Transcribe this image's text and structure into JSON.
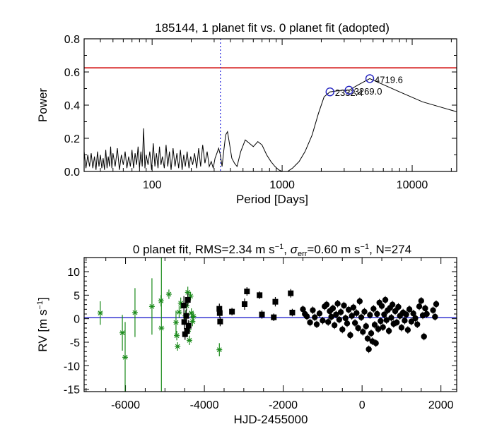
{
  "chart_data": [
    {
      "type": "line",
      "title": "185144,  1 planet fit vs. 0 planet fit (adopted)",
      "xlabel": "Period [Days]",
      "ylabel": "Power",
      "xscale": "log",
      "xlim": [
        30,
        22000
      ],
      "ylim": [
        0,
        0.8
      ],
      "xticks": [
        100,
        1000,
        10000
      ],
      "xtick_labels": [
        "100",
        "1000",
        "10000"
      ],
      "yticks": [
        0.0,
        0.2,
        0.4,
        0.6,
        0.8
      ],
      "ytick_labels": [
        "0.0",
        "0.2",
        "0.4",
        "0.6",
        "0.8"
      ],
      "threshold": 0.625,
      "threshold_color": "#d00000",
      "vline_period": 335,
      "vline_color": "#3333dd",
      "line_color": "#000000",
      "peak_color": "#2020c0",
      "peaks": [
        {
          "period": 2332.4,
          "power": 0.48,
          "label": "2332.4"
        },
        {
          "period": 3269.0,
          "power": 0.49,
          "label": "3269.0"
        },
        {
          "period": 4719.6,
          "power": 0.56,
          "label": "4719.6"
        }
      ],
      "series": [
        {
          "name": "periodogram",
          "x": [
            30,
            31,
            32,
            33,
            34,
            35,
            36,
            37,
            38,
            39,
            40,
            41,
            42,
            43,
            44,
            45,
            46,
            47,
            48,
            49,
            50,
            52,
            54,
            56,
            58,
            60,
            62,
            64,
            66,
            68,
            70,
            72,
            74,
            76,
            78,
            80,
            82,
            84,
            86,
            88,
            90,
            93,
            96,
            99,
            102,
            105,
            108,
            111,
            114,
            117,
            120,
            124,
            128,
            132,
            136,
            140,
            145,
            150,
            155,
            160,
            165,
            170,
            175,
            180,
            186,
            192,
            198,
            205,
            212,
            220,
            228,
            236,
            245,
            255,
            265,
            275,
            285,
            295,
            305,
            315,
            325,
            335,
            345,
            355,
            368,
            380,
            395,
            410,
            430,
            450,
            480,
            520,
            560,
            600,
            650,
            700,
            760,
            820,
            880,
            940,
            1000,
            1100,
            1200,
            1350,
            1500,
            1700,
            1900,
            2100,
            2250,
            2332.4,
            2600,
            2900,
            3269,
            3800,
            4719.6,
            8000,
            12000,
            22000
          ],
          "y": [
            0.12,
            0.02,
            0.1,
            0.03,
            0.11,
            0.02,
            0.09,
            0.01,
            0.12,
            0.03,
            0.1,
            0.02,
            0.08,
            0.01,
            0.13,
            0.02,
            0.09,
            0.03,
            0.15,
            0.02,
            0.11,
            0.03,
            0.14,
            0.01,
            0.1,
            0.04,
            0.12,
            0.02,
            0.09,
            0.03,
            0.13,
            0.02,
            0.11,
            0.04,
            0.15,
            0.02,
            0.12,
            0.03,
            0.26,
            0.02,
            0.1,
            0.04,
            0.12,
            0.01,
            0.17,
            0.03,
            0.11,
            0.02,
            0.15,
            0.04,
            0.09,
            0.02,
            0.16,
            0.03,
            0.12,
            0.01,
            0.14,
            0.03,
            0.11,
            0.02,
            0.13,
            0.01,
            0.1,
            0.03,
            0.12,
            0.02,
            0.09,
            0.04,
            0.11,
            0.02,
            0.14,
            0.03,
            0.16,
            0.05,
            0.12,
            0.03,
            0.06,
            0.02,
            0.08,
            0.11,
            0.14,
            0.1,
            0.03,
            0.12,
            0.22,
            0.24,
            0.16,
            0.08,
            0.05,
            0.03,
            0.12,
            0.19,
            0.17,
            0.15,
            0.18,
            0.16,
            0.1,
            0.06,
            0.03,
            0.01,
            0.0,
            0.0,
            0.02,
            0.06,
            0.12,
            0.22,
            0.35,
            0.45,
            0.47,
            0.48,
            0.485,
            0.49,
            0.49,
            0.52,
            0.56,
            0.48,
            0.42,
            0.36
          ]
        }
      ]
    },
    {
      "type": "scatter",
      "title_parts": {
        "prefix": "0 planet fit, RMS=2.34 m s",
        "exp": "−1",
        "mid": ", ",
        "sigma": "σ",
        "err": "err",
        "val": "=0.60 m s",
        "exp2": "−1",
        "tail": ", N=274"
      },
      "xlabel": "HJD-2455000",
      "ylabel_main": "RV [m s",
      "ylabel_exp": "−1",
      "ylabel_close": "]",
      "xlim": [
        -7050,
        2400
      ],
      "ylim": [
        -15.5,
        13
      ],
      "xticks": [
        -6000,
        -4000,
        -2000,
        0,
        2000
      ],
      "xtick_labels": [
        "-6000",
        "-4000",
        "-2000",
        "0",
        "2000"
      ],
      "yticks": [
        -15,
        -10,
        -5,
        0,
        5,
        10
      ],
      "ytick_labels": [
        "-15",
        "-10",
        "-5",
        "0",
        "5",
        "10"
      ],
      "fit_line": 0.2,
      "fit_color": "#2222cc",
      "group_colors": {
        "green": "#1a8a1a",
        "black": "#000000"
      },
      "green_points": [
        {
          "x": -6640,
          "y": 1.2,
          "err": 2.5
        },
        {
          "x": -6080,
          "y": -3.0,
          "err": 3.8
        },
        {
          "x": -6010,
          "y": -8.2,
          "err": 7.5
        },
        {
          "x": -5760,
          "y": 1.3,
          "err": 5.2
        },
        {
          "x": -5330,
          "y": 2.6,
          "err": 6.0
        },
        {
          "x": -5090,
          "y": -2.0,
          "err": 15.0
        },
        {
          "x": -5100,
          "y": 3.8,
          "err": 1.2
        },
        {
          "x": -4900,
          "y": 5.2,
          "err": 1.0
        },
        {
          "x": -4720,
          "y": -0.8,
          "err": 2.5
        },
        {
          "x": -4700,
          "y": -3.6,
          "err": 1.0
        },
        {
          "x": -4680,
          "y": -5.9,
          "err": 0.9
        },
        {
          "x": -4640,
          "y": 1.4,
          "err": 1.3
        },
        {
          "x": -4600,
          "y": 3.3,
          "err": 1.2
        },
        {
          "x": -4480,
          "y": 0.6,
          "err": 1.2
        },
        {
          "x": -4450,
          "y": 2.8,
          "err": 1.1
        },
        {
          "x": -4420,
          "y": 5.6,
          "err": 1.2
        },
        {
          "x": -4400,
          "y": -2.3,
          "err": 1.0
        },
        {
          "x": -4380,
          "y": -4.6,
          "err": 1.0
        },
        {
          "x": -4350,
          "y": 4.8,
          "err": 0.9
        },
        {
          "x": -4330,
          "y": 1.2,
          "err": 1.0
        },
        {
          "x": -4300,
          "y": -0.6,
          "err": 1.0
        },
        {
          "x": -4280,
          "y": 0.5,
          "err": 0.9
        },
        {
          "x": -3620,
          "y": -6.6,
          "err": 1.4
        }
      ],
      "black_squares": [
        {
          "x": -4520,
          "y": 2.8,
          "err": 2.0
        },
        {
          "x": -4510,
          "y": -0.7,
          "err": 1.5
        },
        {
          "x": -4490,
          "y": -3.3,
          "err": 1.2
        },
        {
          "x": -4460,
          "y": 0.6,
          "err": 1.4
        },
        {
          "x": -4440,
          "y": -2.6,
          "err": 1.2
        },
        {
          "x": -4420,
          "y": 4.0,
          "err": 1.3
        },
        {
          "x": -4400,
          "y": -1.5,
          "err": 1.2
        },
        {
          "x": -3620,
          "y": 2.1,
          "err": 1.1
        },
        {
          "x": -3610,
          "y": 1.2,
          "err": 1.0
        },
        {
          "x": -3600,
          "y": -0.6,
          "err": 1.0
        },
        {
          "x": -3300,
          "y": 1.5,
          "err": 0.8
        },
        {
          "x": -2980,
          "y": 3.1,
          "err": 1.2
        },
        {
          "x": -2920,
          "y": 5.8,
          "err": 0.9
        },
        {
          "x": -2600,
          "y": 5.0,
          "err": 0.8
        },
        {
          "x": -2540,
          "y": 0.9,
          "err": 0.9
        },
        {
          "x": -2240,
          "y": 0.3,
          "err": 0.8
        },
        {
          "x": -2200,
          "y": 3.6,
          "err": 1.0
        },
        {
          "x": -1810,
          "y": 5.4,
          "err": 0.9
        },
        {
          "x": -1770,
          "y": 1.3,
          "err": 0.8
        }
      ],
      "black_circles": [
        {
          "x": -1500,
          "y": 2.0
        },
        {
          "x": -1450,
          "y": 1.0
        },
        {
          "x": -1400,
          "y": 0.5
        },
        {
          "x": -1320,
          "y": -0.8
        },
        {
          "x": -1250,
          "y": 1.8
        },
        {
          "x": -1200,
          "y": 0.3
        },
        {
          "x": -1150,
          "y": -1.2
        },
        {
          "x": -1080,
          "y": 1.1
        },
        {
          "x": -1000,
          "y": -0.4
        },
        {
          "x": -950,
          "y": 2.6
        },
        {
          "x": -900,
          "y": 3.0
        },
        {
          "x": -860,
          "y": -0.7
        },
        {
          "x": -820,
          "y": 1.6
        },
        {
          "x": -780,
          "y": 0.4
        },
        {
          "x": -740,
          "y": 2.2
        },
        {
          "x": -700,
          "y": -1.4
        },
        {
          "x": -660,
          "y": 0.9
        },
        {
          "x": -620,
          "y": 3.2
        },
        {
          "x": -580,
          "y": -0.2
        },
        {
          "x": -540,
          "y": 1.4
        },
        {
          "x": -500,
          "y": -2.3
        },
        {
          "x": -460,
          "y": 2.8
        },
        {
          "x": -420,
          "y": 0.1
        },
        {
          "x": -380,
          "y": -1.0
        },
        {
          "x": -340,
          "y": 1.9
        },
        {
          "x": -300,
          "y": -3.5
        },
        {
          "x": -260,
          "y": 0.6
        },
        {
          "x": -220,
          "y": 2.4
        },
        {
          "x": -180,
          "y": -0.9
        },
        {
          "x": -140,
          "y": 1.2
        },
        {
          "x": -100,
          "y": -2.0
        },
        {
          "x": -60,
          "y": 3.7
        },
        {
          "x": -20,
          "y": 0.3
        },
        {
          "x": 20,
          "y": -2.8
        },
        {
          "x": 60,
          "y": 1.5
        },
        {
          "x": 100,
          "y": -1.6
        },
        {
          "x": 140,
          "y": -4.2
        },
        {
          "x": 170,
          "y": -6.5
        },
        {
          "x": 200,
          "y": 0.8
        },
        {
          "x": 230,
          "y": -3.1
        },
        {
          "x": 260,
          "y": -4.8
        },
        {
          "x": 290,
          "y": 2.1
        },
        {
          "x": 320,
          "y": -1.3
        },
        {
          "x": 350,
          "y": -5.2
        },
        {
          "x": 380,
          "y": 1.0
        },
        {
          "x": 410,
          "y": -2.2
        },
        {
          "x": 440,
          "y": 3.4
        },
        {
          "x": 470,
          "y": -0.5
        },
        {
          "x": 500,
          "y": 2.7
        },
        {
          "x": 530,
          "y": -1.8
        },
        {
          "x": 560,
          "y": 0.9
        },
        {
          "x": 590,
          "y": 4.0
        },
        {
          "x": 620,
          "y": -0.3
        },
        {
          "x": 650,
          "y": 1.8
        },
        {
          "x": 680,
          "y": -2.6
        },
        {
          "x": 710,
          "y": 2.3
        },
        {
          "x": 740,
          "y": 0.2
        },
        {
          "x": 770,
          "y": 3.0
        },
        {
          "x": 800,
          "y": -1.1
        },
        {
          "x": 840,
          "y": 1.6
        },
        {
          "x": 880,
          "y": -0.8
        },
        {
          "x": 920,
          "y": 2.5
        },
        {
          "x": 960,
          "y": 0.6
        },
        {
          "x": 1000,
          "y": -1.9
        },
        {
          "x": 1040,
          "y": 1.3
        },
        {
          "x": 1080,
          "y": -0.4
        },
        {
          "x": 1120,
          "y": 0.9
        },
        {
          "x": 1160,
          "y": -2.4
        },
        {
          "x": 1200,
          "y": 2.0
        },
        {
          "x": 1250,
          "y": -0.6
        },
        {
          "x": 1300,
          "y": 1.1
        },
        {
          "x": 1350,
          "y": 0.1
        },
        {
          "x": 1400,
          "y": -1.2
        },
        {
          "x": 1450,
          "y": 2.6
        },
        {
          "x": 1500,
          "y": 3.8
        },
        {
          "x": 1540,
          "y": 0.7
        },
        {
          "x": 1570,
          "y": -3.8
        },
        {
          "x": 1600,
          "y": 2.2
        },
        {
          "x": 1640,
          "y": 1.0
        },
        {
          "x": 1800,
          "y": 1.8
        },
        {
          "x": 1850,
          "y": 0.4
        },
        {
          "x": 1880,
          "y": 3.1
        }
      ]
    }
  ]
}
